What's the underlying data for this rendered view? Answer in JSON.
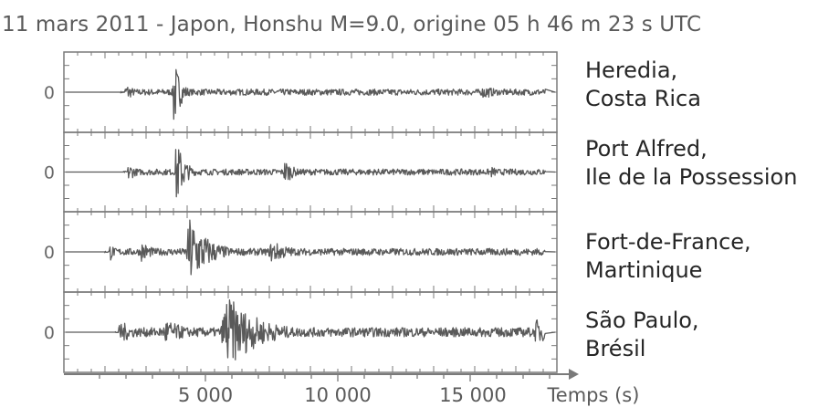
{
  "title": "11 mars 2011 - Japon, Honshu M=9.0, origine 05 h 46 m 23 s UTC",
  "chart_data": {
    "type": "line",
    "title": "11 mars 2011 - Japon, Honshu M=9.0, origine 05 h 46 m 23 s UTC",
    "xlabel": "Temps (s)",
    "ylabel": "",
    "xlim": [
      0,
      18000
    ],
    "xticks": [
      5000,
      10000,
      15000
    ],
    "xtick_labels": [
      "5 000",
      "10 000",
      "15 000"
    ],
    "y_zero_label": "0",
    "grid": false,
    "series": [
      {
        "name": "Heredia, Costa Rica",
        "line1": "Heredia,",
        "line2": "Costa Rica",
        "events": [
          {
            "t": 2000,
            "amp": 0.25,
            "width": 300
          },
          {
            "t": 3800,
            "amp": 1.0,
            "width": 250
          },
          {
            "t": 15500,
            "amp": 0.2,
            "width": 500
          }
        ],
        "noise": 0.08
      },
      {
        "name": "Port Alfred, Ile de la Possession",
        "line1": "Port Alfred,",
        "line2": "Ile de la Possession",
        "events": [
          {
            "t": 2100,
            "amp": 0.25,
            "width": 300
          },
          {
            "t": 3900,
            "amp": 0.95,
            "width": 300
          },
          {
            "t": 8000,
            "amp": 0.35,
            "width": 350
          },
          {
            "t": 15800,
            "amp": 0.15,
            "width": 400
          }
        ],
        "noise": 0.08
      },
      {
        "name": "Fort-de-France, Martinique",
        "line1": "Fort-de-France,",
        "line2": "Martinique",
        "events": [
          {
            "t": 1400,
            "amp": 0.25,
            "width": 200
          },
          {
            "t": 2600,
            "amp": 0.3,
            "width": 400
          },
          {
            "t": 4400,
            "amp": 1.0,
            "width": 700
          },
          {
            "t": 7500,
            "amp": 0.3,
            "width": 800
          }
        ],
        "noise": 0.09
      },
      {
        "name": "São Paulo, Brésil",
        "line1": "São Paulo,",
        "line2": "Brésil",
        "events": [
          {
            "t": 1800,
            "amp": 0.3,
            "width": 600
          },
          {
            "t": 3500,
            "amp": 0.35,
            "width": 800
          },
          {
            "t": 5800,
            "amp": 1.0,
            "width": 1200
          },
          {
            "t": 17500,
            "amp": 0.35,
            "width": 600
          }
        ],
        "noise": 0.12
      }
    ]
  },
  "colors": {
    "trace": "#5a5a5a",
    "frame": "#7a7a7a",
    "text": "#262626"
  }
}
